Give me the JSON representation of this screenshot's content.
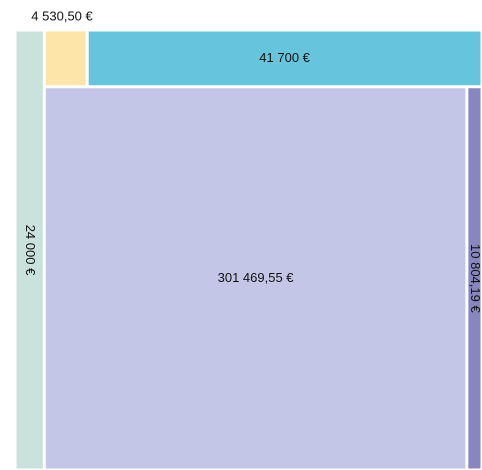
{
  "chart_data": {
    "type": "treemap",
    "values": [
      24000,
      4530.5,
      41700,
      301469.55,
      10804.19
    ],
    "value_labels": [
      "24 000 €",
      "4 530,50 €",
      "41 700 €",
      "301 469,55 €",
      "10 804,19 €"
    ],
    "colors": [
      "#c9e2dc",
      "#fde5aa",
      "#66c5dc",
      "#c3c6e7",
      "#8786c0"
    ]
  }
}
